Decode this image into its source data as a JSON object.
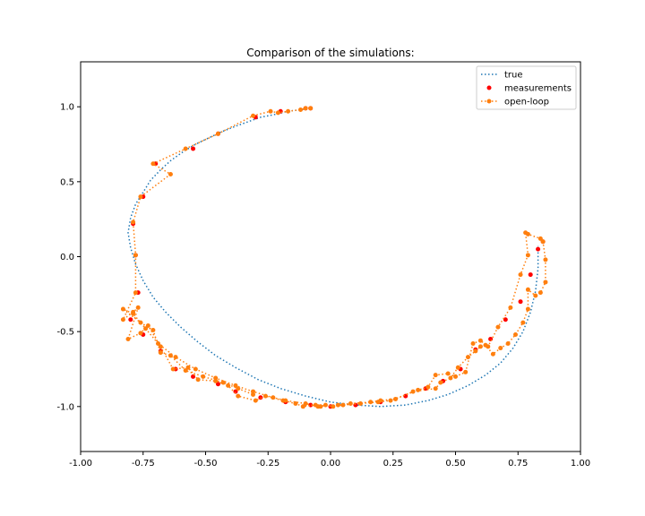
{
  "chart_data": {
    "type": "scatter",
    "title": "Comparison of the simulations:",
    "xlabel": "",
    "ylabel": "",
    "xlim": [
      -1.0,
      1.0
    ],
    "ylim": [
      -1.3,
      1.3
    ],
    "grid": false,
    "legend_position": "top-right",
    "x_ticks": [
      -1.0,
      -0.75,
      -0.5,
      -0.25,
      0.0,
      0.25,
      0.5,
      0.75,
      1.0
    ],
    "x_tick_labels": [
      "-1.00",
      "-0.75",
      "-0.50",
      "-0.25",
      "0.00",
      "0.25",
      "0.50",
      "0.75",
      "1.00"
    ],
    "y_ticks": [
      -1.0,
      -0.5,
      0.0,
      0.5,
      1.0
    ],
    "y_tick_labels": [
      "-1.0",
      "-0.5",
      "0.0",
      "0.5",
      "1.0"
    ],
    "colors": {
      "true": "#1f77b4",
      "measurements": "#ff0000",
      "open_loop": "#ff7f0e"
    },
    "series": [
      {
        "name": "true",
        "style": "dotted-line",
        "x": [
          -0.08,
          -0.12,
          -0.17,
          -0.22,
          -0.28,
          -0.33,
          -0.38,
          -0.44,
          -0.49,
          -0.54,
          -0.59,
          -0.64,
          -0.68,
          -0.72,
          -0.75,
          -0.78,
          -0.8,
          -0.81,
          -0.8,
          -0.78,
          -0.75,
          -0.71,
          -0.66,
          -0.6,
          -0.53,
          -0.46,
          -0.38,
          -0.29,
          -0.2,
          -0.1,
          0.0,
          0.1,
          0.2,
          0.3,
          0.39,
          0.47,
          0.55,
          0.62,
          0.68,
          0.73,
          0.77,
          0.8,
          0.82,
          0.83,
          0.83
        ],
        "y": [
          0.99,
          0.98,
          0.97,
          0.95,
          0.93,
          0.9,
          0.87,
          0.83,
          0.79,
          0.75,
          0.7,
          0.64,
          0.58,
          0.51,
          0.43,
          0.35,
          0.26,
          0.16,
          0.06,
          -0.05,
          -0.16,
          -0.27,
          -0.37,
          -0.47,
          -0.57,
          -0.66,
          -0.74,
          -0.82,
          -0.88,
          -0.93,
          -0.97,
          -0.99,
          -1.0,
          -0.99,
          -0.96,
          -0.92,
          -0.86,
          -0.79,
          -0.71,
          -0.61,
          -0.5,
          -0.37,
          -0.23,
          -0.08,
          0.07
        ]
      },
      {
        "name": "measurements",
        "style": "points",
        "x": [
          -0.08,
          -0.1,
          -0.2,
          -0.3,
          -0.45,
          -0.55,
          -0.7,
          -0.75,
          -0.79,
          -0.78,
          -0.77,
          -0.8,
          -0.75,
          -0.68,
          -0.62,
          -0.55,
          -0.45,
          -0.38,
          -0.28,
          -0.18,
          -0.08,
          0.0,
          0.1,
          0.2,
          0.3,
          0.38,
          0.45,
          0.52,
          0.58,
          0.64,
          0.7,
          0.76,
          0.8,
          0.83,
          0.85
        ],
        "y": [
          0.99,
          0.99,
          0.97,
          0.93,
          0.82,
          0.72,
          0.62,
          0.4,
          0.22,
          0.01,
          -0.24,
          -0.42,
          -0.52,
          -0.63,
          -0.75,
          -0.8,
          -0.85,
          -0.9,
          -0.94,
          -0.97,
          -0.99,
          -1.0,
          -0.99,
          -0.97,
          -0.93,
          -0.88,
          -0.83,
          -0.75,
          -0.62,
          -0.55,
          -0.42,
          -0.3,
          -0.12,
          0.05,
          0.1
        ]
      },
      {
        "name": "open-loop",
        "style": "dotted-line-markers",
        "x": [
          -0.08,
          -0.1,
          -0.12,
          -0.17,
          -0.21,
          -0.24,
          -0.31,
          -0.45,
          -0.58,
          -0.71,
          -0.64,
          -0.76,
          -0.79,
          -0.78,
          -0.78,
          -0.83,
          -0.79,
          -0.77,
          -0.81,
          -0.76,
          -0.73,
          -0.68,
          -0.63,
          -0.57,
          -0.53,
          -0.46,
          -0.41,
          -0.37,
          -0.3,
          -0.26,
          -0.19,
          -0.14,
          -0.11,
          -0.06,
          -0.04,
          -0.02,
          0.01,
          0.05,
          0.12,
          0.19,
          0.24,
          0.35,
          0.39,
          0.42,
          0.47,
          0.5,
          0.54,
          0.57,
          0.6,
          0.63,
          0.67,
          0.72,
          0.76,
          0.79,
          0.78,
          0.79,
          0.84,
          0.85,
          0.86,
          0.86,
          0.84,
          0.82,
          0.79,
          0.79,
          0.77,
          0.74,
          0.71,
          0.68,
          0.65,
          0.62,
          0.6,
          0.58,
          0.55,
          0.51,
          0.48,
          0.44,
          0.42,
          0.33,
          0.26,
          0.2,
          0.16,
          0.08,
          0.03,
          -0.05,
          -0.1,
          -0.18,
          -0.23,
          -0.31,
          -0.38,
          -0.46,
          -0.54,
          -0.62,
          -0.69,
          -0.74,
          -0.79,
          -0.83,
          -0.76,
          -0.71,
          -0.68,
          -0.64,
          -0.58,
          -0.51,
          -0.43,
          -0.37,
          -0.31
        ],
        "y": [
          0.99,
          0.99,
          0.98,
          0.97,
          0.96,
          0.97,
          0.94,
          0.82,
          0.72,
          0.62,
          0.55,
          0.4,
          0.23,
          0.01,
          -0.24,
          -0.42,
          -0.37,
          -0.34,
          -0.55,
          -0.51,
          -0.46,
          -0.6,
          -0.75,
          -0.74,
          -0.82,
          -0.83,
          -0.86,
          -0.93,
          -0.96,
          -0.93,
          -0.96,
          -0.98,
          -1.0,
          -0.99,
          -1.0,
          -0.99,
          -1.0,
          -0.99,
          -0.98,
          -0.97,
          -0.96,
          -0.89,
          -0.87,
          -0.79,
          -0.78,
          -0.8,
          -0.77,
          -0.58,
          -0.56,
          -0.6,
          -0.47,
          -0.34,
          -0.12,
          0.01,
          0.16,
          0.15,
          0.12,
          0.1,
          -0.02,
          -0.17,
          -0.24,
          -0.26,
          -0.22,
          -0.35,
          -0.44,
          -0.52,
          -0.58,
          -0.61,
          -0.65,
          -0.59,
          -0.6,
          -0.63,
          -0.67,
          -0.74,
          -0.81,
          -0.84,
          -0.88,
          -0.9,
          -0.95,
          -0.96,
          -0.97,
          -0.98,
          -0.99,
          -1.0,
          -0.98,
          -0.96,
          -0.94,
          -0.9,
          -0.86,
          -0.81,
          -0.75,
          -0.67,
          -0.58,
          -0.48,
          -0.38,
          -0.35,
          -0.44,
          -0.49,
          -0.64,
          -0.66,
          -0.76,
          -0.8,
          -0.84,
          -0.88,
          -0.92
        ]
      }
    ]
  }
}
